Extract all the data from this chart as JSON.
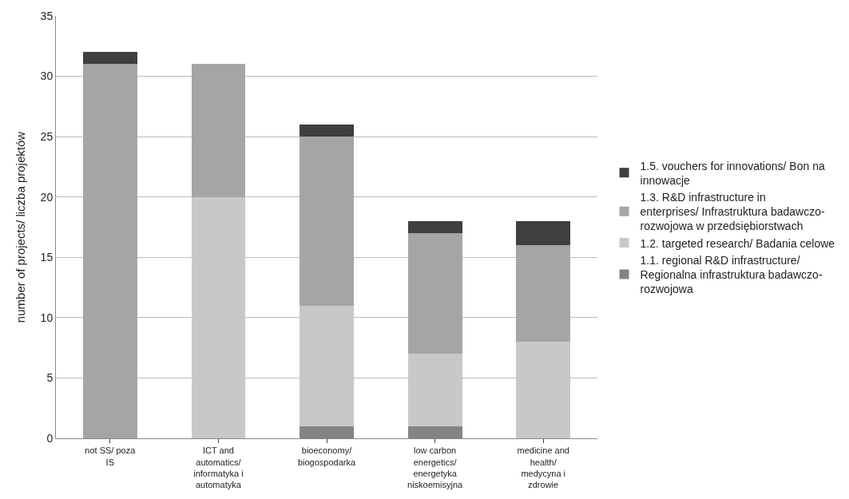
{
  "chart_data": {
    "type": "bar",
    "stacked": true,
    "ylabel": "number of projects/ liczba projektów",
    "categories": [
      "not SS/ poza IS",
      "ICT and automatics/ informatyka i automatyka",
      "bioeconomy/ biogospodarka",
      "low carbon energetics/ energetyka niskoemisyjna",
      "medicine and health/ medycyna i zdrowie"
    ],
    "series": [
      {
        "name": "1.1. regional R&D infrastructure/ Regionalna infrastruktura badawczo-rozwojowa",
        "color": "#848484",
        "values": [
          0,
          0,
          1,
          1,
          0
        ]
      },
      {
        "name": "1.2. targeted research/ Badania celowe",
        "color": "#c8c8c8",
        "values": [
          0,
          20,
          10,
          6,
          8
        ]
      },
      {
        "name": "1.3. R&D infrastructure in enterprises/ Infrastruktura badawczo-rozwojowa w przedsiębiorstwach",
        "color": "#a5a5a5",
        "values": [
          31,
          11,
          14,
          10,
          8
        ]
      },
      {
        "name": "1.5. vouchers for innovations/ Bon na innowacje",
        "color": "#3f3f3f",
        "values": [
          1,
          0,
          1,
          1,
          2
        ]
      }
    ],
    "ylim": [
      0,
      35
    ],
    "yticks": [
      0,
      5,
      10,
      15,
      20,
      25,
      30,
      35
    ],
    "grid": "y",
    "legend": "right"
  }
}
